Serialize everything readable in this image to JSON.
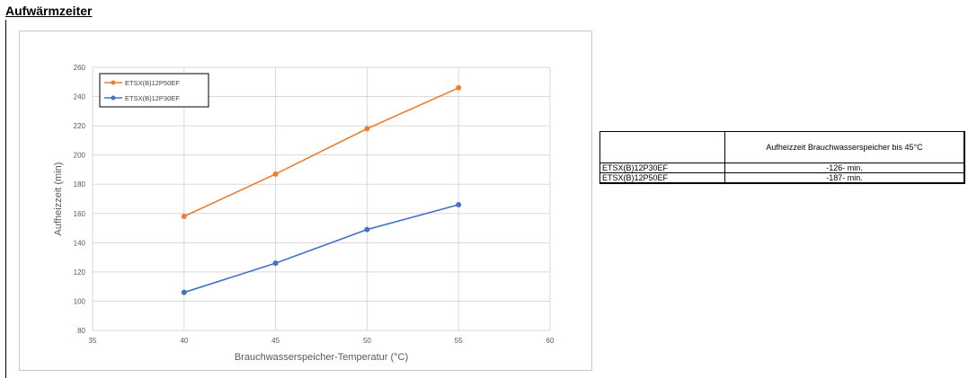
{
  "page": {
    "title": "Aufwärmzeiter"
  },
  "chart_data": {
    "type": "line",
    "xlabel": "Brauchwasserspeicher-Temperatur (°C)",
    "ylabel": "Aufheizzeit (min)",
    "xlim": [
      35,
      60
    ],
    "ylim": [
      80,
      260
    ],
    "xticks": [
      35,
      40,
      45,
      50,
      55,
      60
    ],
    "yticks": [
      80,
      100,
      120,
      140,
      160,
      180,
      200,
      220,
      240,
      260
    ],
    "grid": true,
    "legend_position": "top-left",
    "x": [
      40,
      45,
      50,
      55
    ],
    "series": [
      {
        "name": "ETSX(B)12P50EF",
        "color": "#ed7d31",
        "values": [
          158,
          187,
          218,
          246
        ]
      },
      {
        "name": "ETSX(B)12P30EF",
        "color": "#4472c4",
        "values": [
          106,
          126,
          149,
          166
        ]
      }
    ]
  },
  "summary_table": {
    "header": [
      "",
      "Aufheizzeit Brauchwasserspeicher bis 45°C"
    ],
    "rows": [
      {
        "model": "ETSX(B)12P30EF",
        "time": "-126- min."
      },
      {
        "model": "ETSX(B)12P50EF",
        "time": "-187- min."
      }
    ]
  }
}
